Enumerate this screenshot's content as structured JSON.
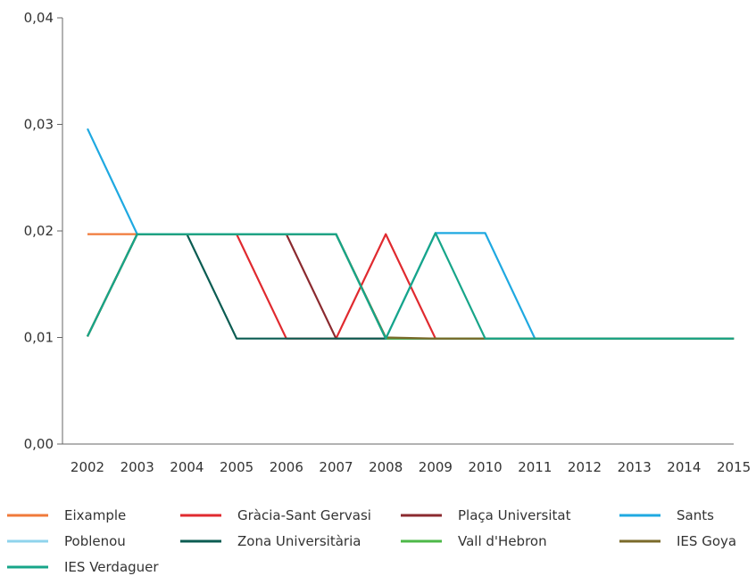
{
  "chart_data": {
    "type": "line",
    "title": "",
    "xlabel": "",
    "ylabel": "",
    "x": [
      "2002",
      "2003",
      "2004",
      "2005",
      "2006",
      "2007",
      "2008",
      "2009",
      "2010",
      "2011",
      "2012",
      "2013",
      "2014",
      "2015"
    ],
    "y_ticks": [
      "0,00",
      "0,01",
      "0,02",
      "0,03",
      "0,04"
    ],
    "ylim": [
      0,
      0.04
    ],
    "grid": false,
    "legend_position": "bottom",
    "series": [
      {
        "name": "Eixample",
        "color": "#f07a3a",
        "values": [
          0.0197,
          0.0197,
          0.0197,
          0.0197,
          0.0197,
          0.0197,
          0.0099,
          0.0099,
          0.0099,
          0.0099,
          0.0099,
          0.0099,
          0.0099,
          0.0099
        ]
      },
      {
        "name": "Gràcia-Sant Gervasi",
        "color": "#e02a2f",
        "values": [
          0.0101,
          0.0197,
          0.0197,
          0.0197,
          0.0099,
          0.0099,
          0.0197,
          0.0099,
          0.0099,
          0.0099,
          0.0099,
          0.0099,
          0.0099,
          0.0099
        ]
      },
      {
        "name": "Plaça Universitat",
        "color": "#8b2a2f",
        "values": [
          0.0101,
          0.0197,
          0.0197,
          0.0197,
          0.0197,
          0.0099,
          0.0099,
          0.0099,
          0.0099,
          0.0099,
          0.0099,
          0.0099,
          0.0099,
          0.0099
        ]
      },
      {
        "name": "Sants",
        "color": "#1fa9e1",
        "values": [
          0.0296,
          0.0197,
          0.0197,
          0.0197,
          0.0197,
          0.0197,
          0.0099,
          0.0198,
          0.0198,
          0.0099,
          0.0099,
          0.0099,
          0.0099,
          0.0099
        ]
      },
      {
        "name": "Poblenou",
        "color": "#8fd3ec",
        "values": [
          0.0101,
          0.0197,
          0.0197,
          0.0197,
          0.0197,
          0.0197,
          0.0099,
          0.0099,
          0.0099,
          0.0099,
          0.0099,
          0.0099,
          0.0099,
          0.0099
        ]
      },
      {
        "name": "Zona Universitària",
        "color": "#0b5c52",
        "values": [
          0.0101,
          0.0197,
          0.0197,
          0.0099,
          0.0099,
          0.0099,
          0.0099,
          0.0099,
          0.0099,
          0.0099,
          0.0099,
          0.0099,
          0.0099,
          0.0099
        ]
      },
      {
        "name": "Vall d'Hebron",
        "color": "#4db848",
        "values": [
          0.0101,
          0.0197,
          0.0197,
          0.0197,
          0.0197,
          0.0197,
          0.0099,
          0.0099,
          0.0099,
          0.0099,
          0.0099,
          0.0099,
          0.0099,
          0.0099
        ]
      },
      {
        "name": "IES Goya",
        "color": "#7a6a2a",
        "values": [
          0.0101,
          0.0197,
          0.0197,
          0.0197,
          0.0197,
          0.0197,
          0.01,
          0.0099,
          0.0099,
          0.0099,
          0.0099,
          0.0099,
          0.0099,
          0.0099
        ]
      },
      {
        "name": "IES Verdaguer",
        "color": "#17a589",
        "values": [
          0.0101,
          0.0197,
          0.0197,
          0.0197,
          0.0197,
          0.0197,
          0.0099,
          0.0198,
          0.0099,
          0.0099,
          0.0099,
          0.0099,
          0.0099,
          0.0099
        ]
      }
    ]
  }
}
